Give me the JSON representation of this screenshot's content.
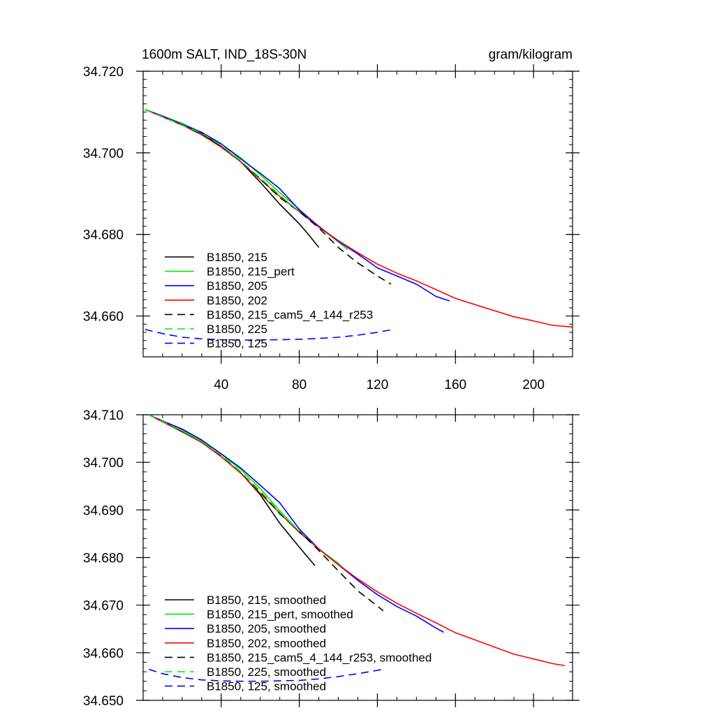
{
  "chart_data": [
    {
      "type": "line",
      "title_left": "1600m SALT, IND_18S-30N",
      "title_right": "gram/kilogram",
      "xlabel": "",
      "ylabel": "",
      "xlim": [
        0,
        220
      ],
      "ylim": [
        34.65,
        34.72
      ],
      "x_ticks": [
        40,
        80,
        120,
        160,
        200
      ],
      "x_tick_labels": [
        "40",
        "80",
        "120",
        "160",
        "200"
      ],
      "y_ticks": [
        34.66,
        34.68,
        34.7,
        34.72
      ],
      "y_tick_labels": [
        "34.660",
        "34.680",
        "34.700",
        "34.720"
      ],
      "series": [
        {
          "name": "B1850, 215",
          "color": "#000000",
          "dash": "solid",
          "x": [
            1,
            10,
            20,
            30,
            40,
            50,
            60,
            70,
            80,
            85,
            90
          ],
          "y": [
            34.7106,
            34.7088,
            34.7068,
            34.7048,
            34.7016,
            34.6978,
            34.6928,
            34.6874,
            34.6826,
            34.6798,
            34.6768
          ]
        },
        {
          "name": "B1850, 215_pert",
          "color": "#00ee00",
          "dash": "solid",
          "x": [
            1,
            10,
            20,
            30,
            40,
            50,
            60,
            70,
            80,
            90,
            100,
            105
          ],
          "y": [
            34.7106,
            34.709,
            34.7072,
            34.705,
            34.7022,
            34.6988,
            34.6946,
            34.6902,
            34.6862,
            34.6818,
            34.6782,
            34.6762
          ]
        },
        {
          "name": "B1850, 205",
          "color": "#0000ff",
          "dash": "solid",
          "x": [
            1,
            10,
            20,
            30,
            40,
            50,
            60,
            70,
            80,
            90,
            100,
            110,
            120,
            130,
            140,
            150,
            157
          ],
          "y": [
            34.7106,
            34.709,
            34.707,
            34.705,
            34.7022,
            34.6985,
            34.695,
            34.6912,
            34.686,
            34.682,
            34.6783,
            34.6752,
            34.6718,
            34.6698,
            34.6678,
            34.6648,
            34.6637
          ]
        },
        {
          "name": "B1850, 202",
          "color": "#ff0000",
          "dash": "solid",
          "x": [
            1,
            10,
            20,
            30,
            40,
            50,
            60,
            70,
            80,
            90,
            100,
            110,
            120,
            130,
            140,
            150,
            160,
            170,
            180,
            190,
            200,
            210,
            220
          ],
          "y": [
            34.7106,
            34.7088,
            34.7068,
            34.7044,
            34.7014,
            34.6978,
            34.6935,
            34.6893,
            34.6856,
            34.6818,
            34.6785,
            34.6755,
            34.6727,
            34.6705,
            34.6686,
            34.6665,
            34.6643,
            34.6628,
            34.6613,
            34.6598,
            34.6588,
            34.6577,
            34.6573
          ]
        },
        {
          "name": "B1850, 215_cam5_4_144_r253",
          "color": "#000000",
          "dash": "dashed",
          "x": [
            1,
            10,
            20,
            30,
            40,
            50,
            60,
            70,
            80,
            90,
            100,
            110,
            120,
            127
          ],
          "y": [
            34.7106,
            34.7088,
            34.7068,
            34.7046,
            34.7016,
            34.698,
            34.6936,
            34.689,
            34.6856,
            34.6816,
            34.6768,
            34.673,
            34.6698,
            34.6678
          ]
        },
        {
          "name": "B1850, 225",
          "color": "#00ee00",
          "dash": "dashed",
          "x": [
            1,
            10,
            20,
            30,
            40,
            50,
            60,
            70,
            80
          ],
          "y": [
            34.7106,
            34.7088,
            34.7068,
            34.7048,
            34.7018,
            34.698,
            34.6938,
            34.6896,
            34.6856
          ]
        },
        {
          "name": "B1850, 125",
          "color": "#0000ff",
          "dash": "dashed",
          "x": [
            1,
            10,
            20,
            30,
            40,
            50,
            60,
            70,
            80,
            90,
            100,
            110,
            120,
            127
          ],
          "y": [
            34.6567,
            34.6557,
            34.6548,
            34.6544,
            34.6542,
            34.6541,
            34.6541,
            34.6542,
            34.6543,
            34.6545,
            34.6548,
            34.6553,
            34.656,
            34.6566
          ]
        }
      ]
    },
    {
      "type": "line",
      "title_left": "",
      "title_right": "",
      "xlabel": "",
      "ylabel": "",
      "xlim": [
        0,
        220
      ],
      "ylim": [
        34.65,
        34.71
      ],
      "x_ticks": [
        40,
        80,
        120,
        160,
        200
      ],
      "x_tick_labels": [],
      "y_ticks": [
        34.65,
        34.66,
        34.67,
        34.68,
        34.69,
        34.7,
        34.71
      ],
      "y_tick_labels": [
        "34.650",
        "34.660",
        "34.670",
        "34.680",
        "34.690",
        "34.700",
        "34.710"
      ],
      "series": [
        {
          "name": "B1850, 215, smoothed",
          "color": "#000000",
          "dash": "solid",
          "x": [
            3,
            10,
            20,
            30,
            40,
            50,
            60,
            70,
            80,
            88
          ],
          "y": [
            34.71,
            34.7085,
            34.7064,
            34.7042,
            34.7012,
            34.6978,
            34.6932,
            34.6872,
            34.6822,
            34.6783
          ]
        },
        {
          "name": "B1850, 215_pert, smoothed",
          "color": "#00ee00",
          "dash": "solid",
          "x": [
            3,
            10,
            20,
            30,
            40,
            50,
            60,
            70,
            80,
            90,
            100,
            104
          ],
          "y": [
            34.71,
            34.7086,
            34.7068,
            34.7045,
            34.7017,
            34.6985,
            34.6945,
            34.6898,
            34.6855,
            34.6818,
            34.6788,
            34.6772
          ]
        },
        {
          "name": "B1850, 205, smoothed",
          "color": "#0000ff",
          "dash": "solid",
          "x": [
            3,
            10,
            20,
            30,
            40,
            50,
            60,
            70,
            80,
            90,
            100,
            110,
            120,
            130,
            140,
            150,
            154
          ],
          "y": [
            34.71,
            34.7087,
            34.707,
            34.7047,
            34.7018,
            34.6988,
            34.6952,
            34.6915,
            34.686,
            34.6818,
            34.6785,
            34.6752,
            34.6722,
            34.6697,
            34.6677,
            34.6652,
            34.6643
          ]
        },
        {
          "name": "B1850, 202, smoothed",
          "color": "#ff0000",
          "dash": "solid",
          "x": [
            3,
            10,
            20,
            30,
            40,
            50,
            60,
            70,
            80,
            90,
            100,
            110,
            120,
            130,
            140,
            150,
            160,
            170,
            180,
            190,
            200,
            210,
            216
          ],
          "y": [
            34.71,
            34.7085,
            34.7065,
            34.7042,
            34.7012,
            34.6977,
            34.6935,
            34.6893,
            34.6853,
            34.6818,
            34.6785,
            34.6755,
            34.6728,
            34.6704,
            34.6683,
            34.6663,
            34.6642,
            34.6627,
            34.6612,
            34.6597,
            34.6587,
            34.6577,
            34.6573
          ]
        },
        {
          "name": "B1850, 215_cam5_4_144_r253, smoothed",
          "color": "#000000",
          "dash": "dashed",
          "x": [
            3,
            10,
            20,
            30,
            40,
            50,
            60,
            70,
            80,
            90,
            100,
            110,
            120,
            123
          ],
          "y": [
            34.71,
            34.7086,
            34.7066,
            34.7044,
            34.7014,
            34.698,
            34.6938,
            34.6892,
            34.6855,
            34.6815,
            34.6772,
            34.673,
            34.6698,
            34.6688
          ]
        },
        {
          "name": "B1850, 225, smoothed",
          "color": "#00ee00",
          "dash": "dashed",
          "x": [
            3,
            10,
            20,
            30,
            40,
            50,
            60,
            70,
            80
          ],
          "y": [
            34.71,
            34.7086,
            34.7066,
            34.7044,
            34.7015,
            34.698,
            34.694,
            34.6895,
            34.6855
          ]
        },
        {
          "name": "B1850, 125, smoothed",
          "color": "#0000ff",
          "dash": "dashed",
          "x": [
            3,
            10,
            20,
            30,
            40,
            50,
            60,
            70,
            80,
            90,
            100,
            110,
            120,
            123
          ],
          "y": [
            34.6565,
            34.6556,
            34.6548,
            34.6543,
            34.6541,
            34.654,
            34.654,
            34.6541,
            34.6542,
            34.6545,
            34.655,
            34.6556,
            34.6563,
            34.6566
          ]
        }
      ]
    }
  ]
}
